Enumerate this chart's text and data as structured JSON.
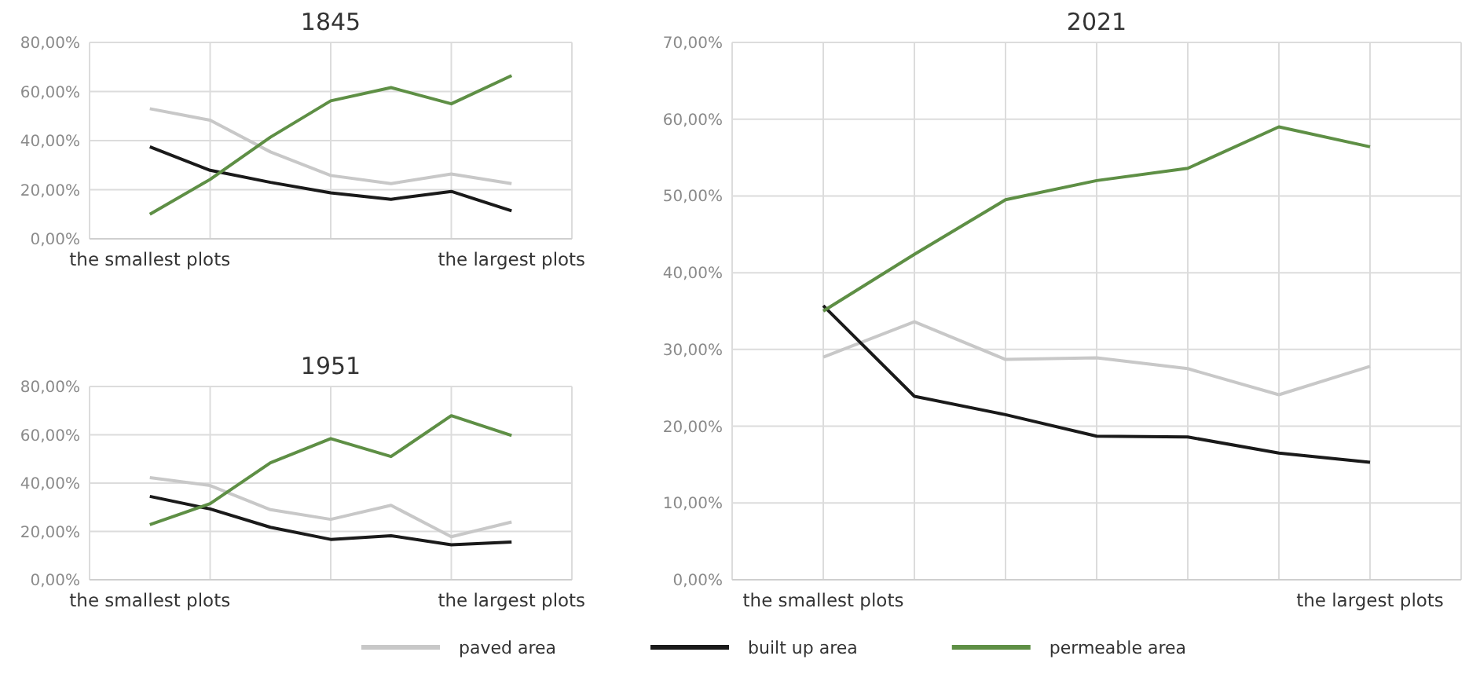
{
  "chart_data": [
    {
      "type": "line",
      "title": "1845",
      "categories": [
        "the smallest plots",
        null,
        null,
        null,
        null,
        null,
        "the largest plots"
      ],
      "ylim": [
        0,
        80
      ],
      "yticks": [
        {
          "value": 0,
          "label": "0,00%"
        },
        {
          "value": 20,
          "label": "20,00%"
        },
        {
          "value": 40,
          "label": "40,00%"
        },
        {
          "value": 60,
          "label": "60,00%"
        },
        {
          "value": 80,
          "label": "80,00%"
        }
      ],
      "grid": true,
      "series": [
        {
          "color": "#c8c8c8",
          "values": [
            53,
            48.3,
            35.4,
            25.8,
            22.5,
            26.4,
            22.5
          ]
        },
        {
          "color": "#1a1a1a",
          "values": [
            37.5,
            27.9,
            23,
            18.7,
            16.1,
            19.3,
            11.4
          ]
        },
        {
          "color": "#5e8f45",
          "values": [
            10,
            24.2,
            41.4,
            56.2,
            61.6,
            55,
            66.5
          ]
        }
      ]
    },
    {
      "type": "line",
      "title": "1951",
      "categories": [
        "the smallest plots",
        null,
        null,
        null,
        null,
        null,
        "the largest plots"
      ],
      "ylim": [
        0,
        80
      ],
      "yticks": [
        {
          "value": 0,
          "label": "0,00%"
        },
        {
          "value": 20,
          "label": "20,00%"
        },
        {
          "value": 40,
          "label": "40,00%"
        },
        {
          "value": 60,
          "label": "60,00%"
        },
        {
          "value": 80,
          "label": "80,00%"
        }
      ],
      "grid": true,
      "series": [
        {
          "color": "#c8c8c8",
          "values": [
            42.3,
            39,
            29,
            25,
            30.8,
            17.8,
            23.9
          ]
        },
        {
          "color": "#1a1a1a",
          "values": [
            34.5,
            29.3,
            21.7,
            16.7,
            18.2,
            14.5,
            15.6
          ]
        },
        {
          "color": "#5e8f45",
          "values": [
            22.8,
            31.5,
            48.4,
            58.4,
            51,
            67.9,
            59.7
          ]
        }
      ]
    },
    {
      "type": "line",
      "title": "2021",
      "categories": [
        "the smallest plots",
        null,
        null,
        null,
        null,
        null,
        "the largest plots"
      ],
      "ylim": [
        0,
        70
      ],
      "yticks": [
        {
          "value": 0,
          "label": "0,00%"
        },
        {
          "value": 10,
          "label": "10,00%"
        },
        {
          "value": 20,
          "label": "20,00%"
        },
        {
          "value": 30,
          "label": "30,00%"
        },
        {
          "value": 40,
          "label": "40,00%"
        },
        {
          "value": 50,
          "label": "50,00%"
        },
        {
          "value": 60,
          "label": "60,00%"
        },
        {
          "value": 70,
          "label": "70,00%"
        }
      ],
      "grid": true,
      "legend": "bottom",
      "series": [
        {
          "name": "paved area",
          "color": "#c8c8c8",
          "values": [
            29,
            33.6,
            28.7,
            28.9,
            27.5,
            24.1,
            27.8
          ]
        },
        {
          "name": "built up area",
          "color": "#1a1a1a",
          "values": [
            35.7,
            23.9,
            21.5,
            18.7,
            18.6,
            16.5,
            15.3
          ]
        },
        {
          "name": "permeable area",
          "color": "#5e8f45",
          "values": [
            35,
            42.4,
            49.5,
            52,
            53.6,
            59,
            56.4
          ]
        }
      ]
    }
  ]
}
